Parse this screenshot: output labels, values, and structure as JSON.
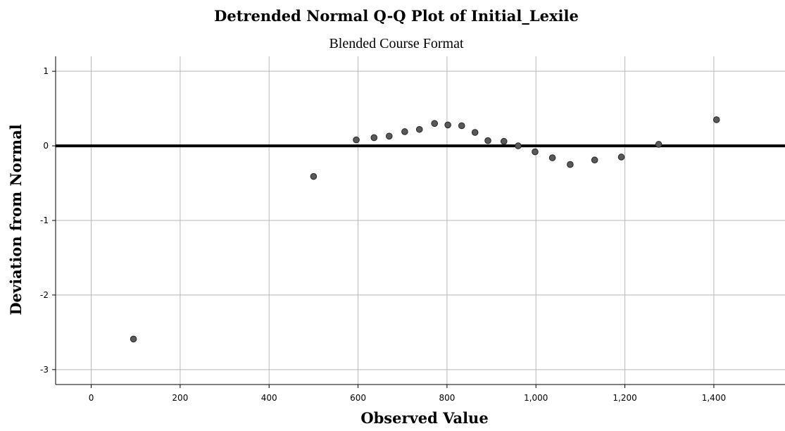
{
  "chart_data": {
    "type": "scatter",
    "title": "Detrended Normal Q-Q Plot of Initial_Lexile",
    "subtitle": "Blended Course Format",
    "xlabel": "Observed Value",
    "ylabel": "Deviation from Normal",
    "xlim": [
      -80,
      1560
    ],
    "ylim": [
      -3.2,
      1.2
    ],
    "x_ticks": [
      0,
      200,
      400,
      600,
      800,
      1000,
      1200,
      1400
    ],
    "x_tick_labels": [
      "0",
      "200",
      "400",
      "600",
      "800",
      "1,000",
      "1,200",
      "1,400"
    ],
    "y_ticks": [
      1,
      0,
      -1,
      -2,
      -3
    ],
    "y_tick_labels": [
      "1",
      "0",
      "-1",
      "-2",
      "-3"
    ],
    "grid": true,
    "reference_line_y": 0,
    "colors": {
      "point_fill": "#595959",
      "point_stroke": "#262626",
      "grid": "#b8b8b8",
      "reference_line": "#000000"
    },
    "points": [
      {
        "x": 95,
        "y": -2.59
      },
      {
        "x": 500,
        "y": -0.41
      },
      {
        "x": 596,
        "y": 0.08
      },
      {
        "x": 636,
        "y": 0.11
      },
      {
        "x": 670,
        "y": 0.13
      },
      {
        "x": 705,
        "y": 0.19
      },
      {
        "x": 738,
        "y": 0.22
      },
      {
        "x": 772,
        "y": 0.3
      },
      {
        "x": 802,
        "y": 0.28
      },
      {
        "x": 833,
        "y": 0.27
      },
      {
        "x": 863,
        "y": 0.18
      },
      {
        "x": 892,
        "y": 0.07
      },
      {
        "x": 928,
        "y": 0.06
      },
      {
        "x": 960,
        "y": 0.0
      },
      {
        "x": 998,
        "y": -0.08
      },
      {
        "x": 1037,
        "y": -0.16
      },
      {
        "x": 1077,
        "y": -0.25
      },
      {
        "x": 1132,
        "y": -0.19
      },
      {
        "x": 1192,
        "y": -0.15
      },
      {
        "x": 1276,
        "y": 0.02
      },
      {
        "x": 1406,
        "y": 0.35
      }
    ]
  }
}
